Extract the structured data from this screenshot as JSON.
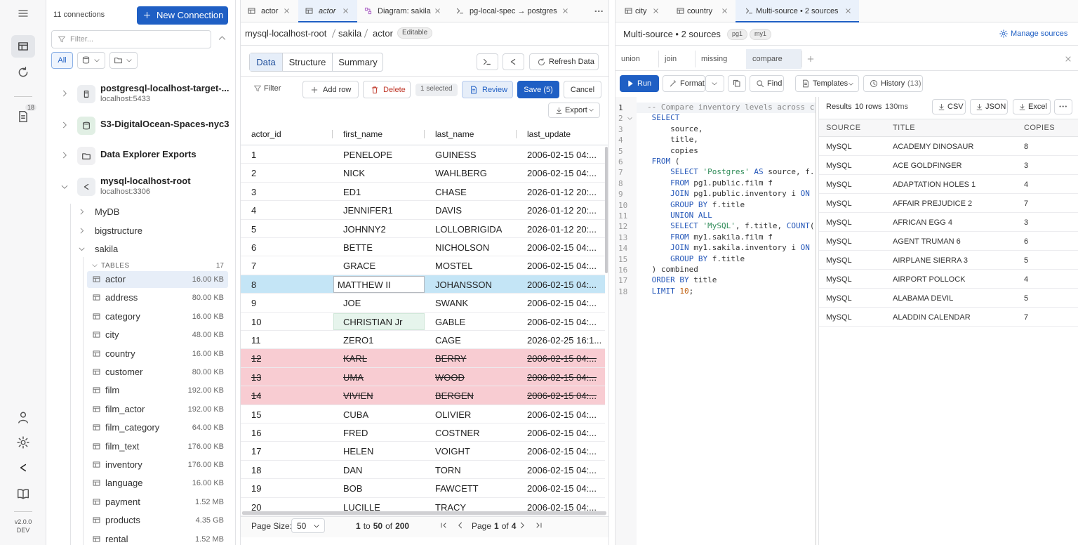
{
  "rail": {
    "badge": "18",
    "version": "v2.0.0",
    "env": "DEV"
  },
  "explorer": {
    "count": "11 connections",
    "new_connection": "New Connection",
    "filter_placeholder": "Filter...",
    "all": "All",
    "connections": [
      {
        "name": "postgresql-localhost-target-...",
        "host": "localhost:5433"
      },
      {
        "name": "S3-DigitalOcean-Spaces-nyc3"
      },
      {
        "name": "Data Explorer Exports"
      },
      {
        "name": "mysql-localhost-root",
        "host": "localhost:3306"
      }
    ],
    "databases": [
      "MyDB",
      "bigstructure",
      "sakila"
    ],
    "tables_label": "TABLES",
    "tables_count": "17",
    "tables": [
      {
        "name": "actor",
        "size": "16.00 KB",
        "selected": true
      },
      {
        "name": "address",
        "size": "80.00 KB"
      },
      {
        "name": "category",
        "size": "16.00 KB"
      },
      {
        "name": "city",
        "size": "48.00 KB"
      },
      {
        "name": "country",
        "size": "16.00 KB"
      },
      {
        "name": "customer",
        "size": "80.00 KB"
      },
      {
        "name": "film",
        "size": "192.00 KB"
      },
      {
        "name": "film_actor",
        "size": "192.00 KB"
      },
      {
        "name": "film_category",
        "size": "64.00 KB"
      },
      {
        "name": "film_text",
        "size": "176.00 KB"
      },
      {
        "name": "inventory",
        "size": "176.00 KB"
      },
      {
        "name": "language",
        "size": "16.00 KB"
      },
      {
        "name": "payment",
        "size": "1.52 MB"
      },
      {
        "name": "products",
        "size": "4.35 GB"
      },
      {
        "name": "rental",
        "size": "1.52 MB"
      }
    ]
  },
  "left": {
    "tabs": [
      "actor",
      "actor",
      "Diagram: sakila",
      "pg-local-spec → postgres"
    ],
    "breadcrumb": [
      "mysql-localhost-root",
      "sakila",
      "actor"
    ],
    "badge": "Editable",
    "views": [
      "Data",
      "Structure",
      "Summary"
    ],
    "refresh": "Refresh Data",
    "toolbar": {
      "filter": "Filter",
      "add_row": "Add row",
      "delete": "Delete",
      "selected": "1 selected",
      "review": "Review",
      "save": "Save (5)",
      "cancel": "Cancel",
      "export": "Export"
    },
    "grid": {
      "columns": [
        "actor_id",
        "first_name",
        "last_name",
        "last_update"
      ],
      "rows": [
        {
          "cells": [
            "1",
            "PENELOPE",
            "GUINESS",
            "2006-02-15 04:..."
          ]
        },
        {
          "cells": [
            "2",
            "NICK",
            "WAHLBERG",
            "2006-02-15 04:..."
          ]
        },
        {
          "cells": [
            "3",
            "ED1",
            "CHASE",
            "2026-01-12 20:..."
          ]
        },
        {
          "cells": [
            "4",
            "JENNIFER1",
            "DAVIS",
            "2026-01-12 20:..."
          ]
        },
        {
          "cells": [
            "5",
            "JOHNNY2",
            "LOLLOBRIGIDA",
            "2026-01-12 20:..."
          ]
        },
        {
          "cells": [
            "6",
            "BETTE",
            "NICHOLSON",
            "2006-02-15 04:..."
          ]
        },
        {
          "cells": [
            "7",
            "GRACE",
            "MOSTEL",
            "2006-02-15 04:..."
          ]
        },
        {
          "cells": [
            "8",
            "MATTHEW II",
            "JOHANSSON",
            "2006-02-15 04:..."
          ],
          "state": "selected",
          "editing": 1
        },
        {
          "cells": [
            "9",
            "JOE",
            "SWANK",
            "2006-02-15 04:..."
          ]
        },
        {
          "cells": [
            "10",
            "CHRISTIAN Jr",
            "GABLE",
            "2006-02-15 04:..."
          ],
          "edited": 1
        },
        {
          "cells": [
            "11",
            "ZERO1",
            "CAGE",
            "2026-02-25 16:1..."
          ]
        },
        {
          "cells": [
            "12",
            "KARL",
            "BERRY",
            "2006-02-15 04:..."
          ],
          "state": "deleted"
        },
        {
          "cells": [
            "13",
            "UMA",
            "WOOD",
            "2006-02-15 04:..."
          ],
          "state": "deleted"
        },
        {
          "cells": [
            "14",
            "VIVIEN",
            "BERGEN",
            "2006-02-15 04:..."
          ],
          "state": "deleted"
        },
        {
          "cells": [
            "15",
            "CUBA",
            "OLIVIER",
            "2006-02-15 04:..."
          ]
        },
        {
          "cells": [
            "16",
            "FRED",
            "COSTNER",
            "2006-02-15 04:..."
          ]
        },
        {
          "cells": [
            "17",
            "HELEN",
            "VOIGHT",
            "2006-02-15 04:..."
          ]
        },
        {
          "cells": [
            "18",
            "DAN",
            "TORN",
            "2006-02-15 04:..."
          ]
        },
        {
          "cells": [
            "19",
            "BOB",
            "FAWCETT",
            "2006-02-15 04:..."
          ]
        },
        {
          "cells": [
            "20",
            "LUCILLE",
            "TRACY",
            "2006-02-15 04:..."
          ]
        }
      ]
    },
    "footer": {
      "page_size_label": "Page Size:",
      "page_size": "50",
      "from": "1",
      "to_word": "to",
      "to": "50",
      "of_word": "of",
      "total": "200",
      "page_word": "Page",
      "page": "1",
      "pages_word": "of",
      "pages": "4"
    }
  },
  "right": {
    "tabs": [
      "city",
      "country",
      "Multi-source • 2 sources"
    ],
    "title": "Multi-source • 2 sources",
    "sources": [
      "pg1",
      "my1"
    ],
    "manage": "Manage sources",
    "subtabs": [
      "union",
      "join",
      "missing",
      "compare"
    ],
    "toolbar": {
      "run": "Run",
      "format": "Format",
      "find": "Find",
      "templates": "Templates",
      "history": "History",
      "history_count": "(13)"
    },
    "code": [
      "-- Compare inventory levels across c",
      " SELECT",
      "     source,",
      "     title,",
      "     copies",
      " FROM (",
      "     SELECT 'Postgres' AS source, f.",
      "     FROM pg1.public.film f",
      "     JOIN pg1.public.inventory i ON",
      "     GROUP BY f.title",
      "     UNION ALL",
      "     SELECT 'MySQL', f.title, COUNT(",
      "     FROM my1.sakila.film f",
      "     JOIN my1.sakila.inventory i ON",
      "     GROUP BY f.title",
      " ) combined",
      " ORDER BY title",
      " LIMIT 10;"
    ],
    "results": {
      "label": "Results",
      "rows_count": "10 rows",
      "time": "130ms",
      "exports": [
        "CSV",
        "JSON",
        "Excel"
      ],
      "columns": [
        "SOURCE",
        "TITLE",
        "COPIES"
      ],
      "rows": [
        [
          "MySQL",
          "ACADEMY DINOSAUR",
          "8"
        ],
        [
          "MySQL",
          "ACE GOLDFINGER",
          "3"
        ],
        [
          "MySQL",
          "ADAPTATION HOLES 1",
          "4"
        ],
        [
          "MySQL",
          "AFFAIR PREJUDICE 2",
          "7"
        ],
        [
          "MySQL",
          "AFRICAN EGG 4",
          "3"
        ],
        [
          "MySQL",
          "AGENT TRUMAN 6",
          "6"
        ],
        [
          "MySQL",
          "AIRPLANE SIERRA 3",
          "5"
        ],
        [
          "MySQL",
          "AIRPORT POLLOCK",
          "4"
        ],
        [
          "MySQL",
          "ALABAMA DEVIL",
          "5"
        ],
        [
          "MySQL",
          "ALADDIN CALENDAR",
          "7"
        ]
      ]
    }
  }
}
